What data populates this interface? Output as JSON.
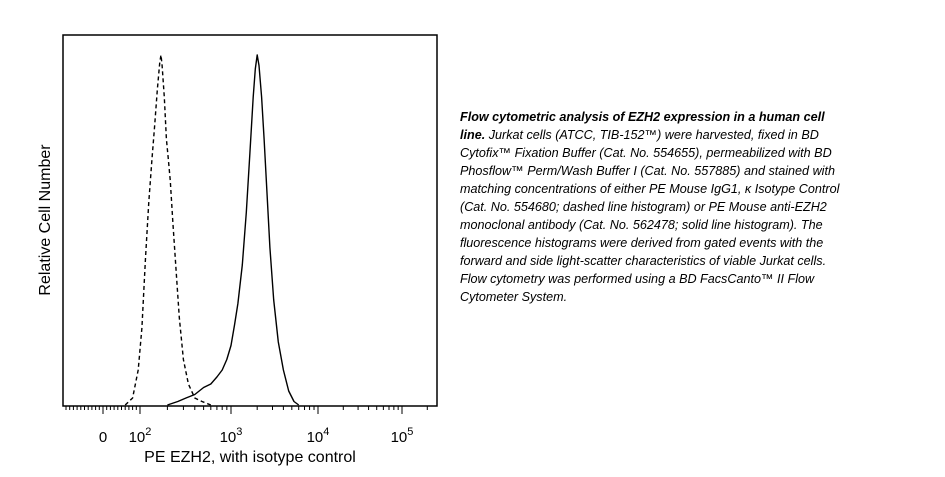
{
  "chart_data": {
    "type": "line",
    "xlabel": "PE EZH2, with isotype control",
    "ylabel": "Relative Cell Number",
    "x_scale": "biexponential",
    "x_ticks": [
      {
        "value": 0,
        "label": "0"
      },
      {
        "value": 100,
        "base": "10",
        "exp": "2"
      },
      {
        "value": 1000,
        "base": "10",
        "exp": "3"
      },
      {
        "value": 10000,
        "base": "10",
        "exp": "4"
      },
      {
        "value": 100000,
        "base": "10",
        "exp": "5"
      }
    ],
    "ylim": [
      0,
      100
    ],
    "grid": false,
    "series": [
      {
        "style": "dashed",
        "x": [
          60,
          80,
          95,
          105,
          115,
          125,
          135,
          145,
          155,
          165,
          170,
          175,
          185,
          195,
          205,
          215,
          230,
          250,
          270,
          300,
          340,
          400,
          480,
          600
        ],
        "y": [
          0,
          2,
          10,
          22,
          42,
          58,
          70,
          80,
          90,
          98,
          100,
          97,
          88,
          76,
          70,
          64,
          52,
          38,
          25,
          13,
          6,
          2,
          1,
          0
        ]
      },
      {
        "style": "solid",
        "x": [
          200,
          260,
          320,
          400,
          500,
          600,
          700,
          800,
          900,
          1000,
          1100,
          1200,
          1350,
          1500,
          1650,
          1800,
          1900,
          2000,
          2100,
          2250,
          2400,
          2600,
          2800,
          3100,
          3500,
          4000,
          4600,
          5300,
          6000
        ],
        "y": [
          0,
          1,
          2,
          3,
          5,
          6,
          8,
          10,
          13,
          17,
          23,
          29,
          40,
          55,
          72,
          88,
          96,
          100,
          97,
          88,
          76,
          60,
          45,
          30,
          18,
          10,
          4,
          1,
          0
        ]
      }
    ]
  },
  "caption": {
    "bold": "Flow cytometric analysis of EZH2 expression in a human cell line.",
    "text": " Jurkat cells (ATCC, TIB-152™) were harvested, fixed in BD Cytofix™ Fixation Buffer (Cat. No. 554655), permeabilized with BD Phosflow™ Perm/Wash Buffer I (Cat. No. 557885) and stained with matching concentrations of either PE Mouse IgG1, κ Isotype Control (Cat. No. 554680; dashed line histogram) or PE Mouse anti-EZH2 monoclonal antibody (Cat. No. 562478; solid line histogram). The fluorescence histograms were derived from gated events with the forward and side light-scatter characteristics of viable Jurkat cells. Flow cytometry was performed using a BD FacsCanto™ II Flow Cytometer System."
  }
}
